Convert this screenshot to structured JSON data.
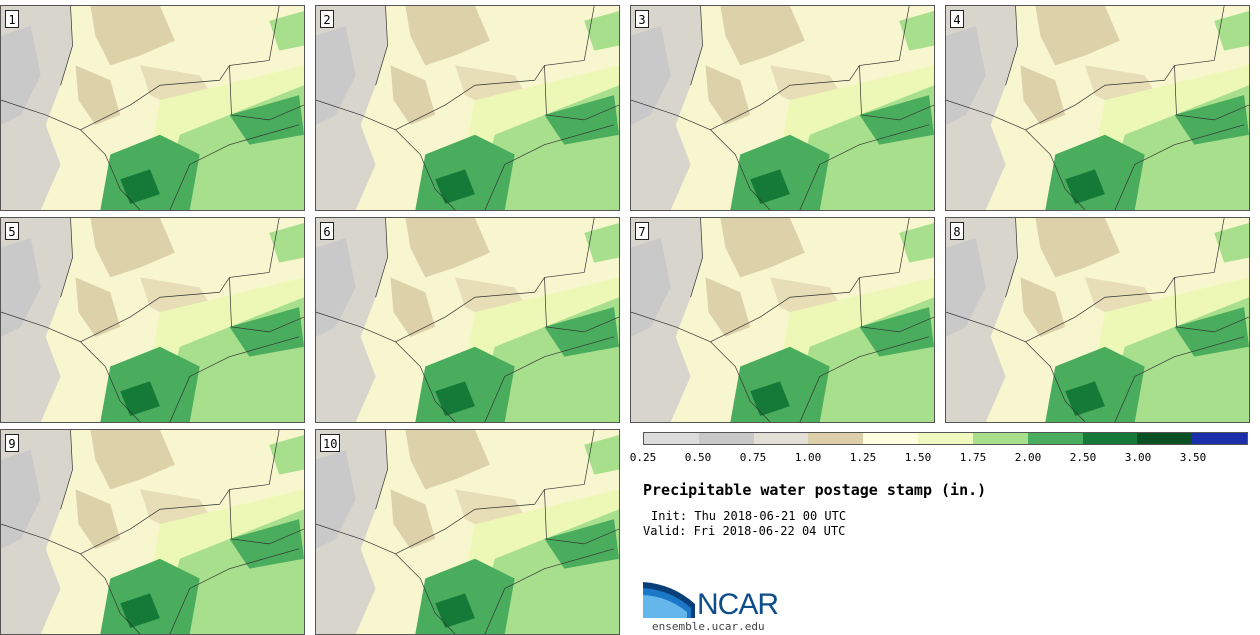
{
  "panels": [
    {
      "label": "1"
    },
    {
      "label": "2"
    },
    {
      "label": "3"
    },
    {
      "label": "4"
    },
    {
      "label": "5"
    },
    {
      "label": "6"
    },
    {
      "label": "7"
    },
    {
      "label": "8"
    },
    {
      "label": "9"
    },
    {
      "label": "10"
    }
  ],
  "colorbar": {
    "colors": [
      "#dcdcdc",
      "#c8c8c8",
      "#e2e0d6",
      "#ddcfaa",
      "#fffee0",
      "#f0fac0",
      "#a8df8c",
      "#4aad5e",
      "#157a38",
      "#0b4f24",
      "#1b2fab"
    ],
    "ticks": [
      "0.25",
      "0.50",
      "0.75",
      "1.00",
      "1.25",
      "1.50",
      "1.75",
      "2.00",
      "2.50",
      "3.00",
      "3.50"
    ]
  },
  "title": "Precipitable water postage stamp (in.)",
  "init": "Init: Thu 2018-06-21 00 UTC",
  "valid": "Valid: Fri 2018-06-22 04 UTC",
  "logo": {
    "text": "NCAR",
    "url": "ensemble.ucar.edu"
  }
}
